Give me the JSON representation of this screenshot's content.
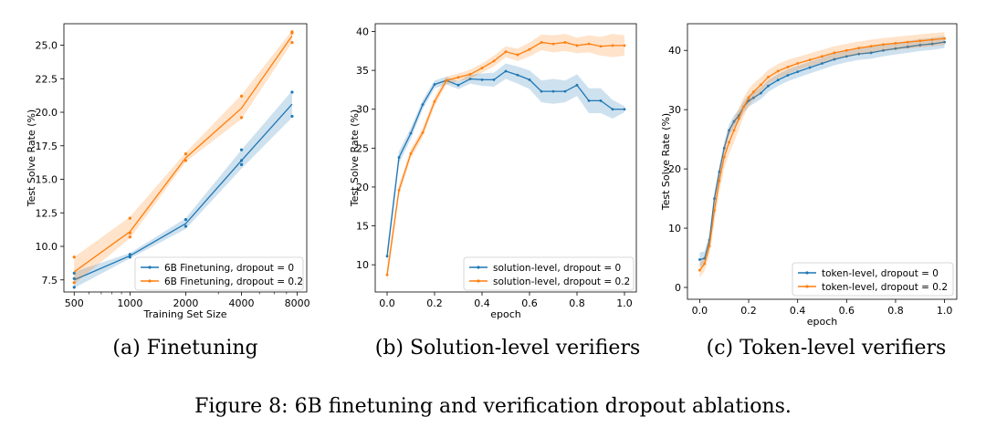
{
  "caption": "Figure 8: 6B finetuning and verification dropout ablations.",
  "colors": {
    "blue": "#1f77b4",
    "orange": "#ff7f0e"
  },
  "chart_data": [
    {
      "type": "line",
      "subcaption": "(a) Finetuning",
      "xlabel": "Training Set Size",
      "ylabel": "Test Solve Rate (%)",
      "xscale": "log2",
      "xlim": [
        440,
        9000
      ],
      "ylim": [
        6.6,
        26.6
      ],
      "xticks": [
        500,
        1000,
        2000,
        4000,
        8000
      ],
      "xticklabels": [
        "500",
        "1000",
        "2000",
        "4000",
        "8000"
      ],
      "yticks": [
        7.5,
        10,
        12.5,
        15,
        17.5,
        20,
        22.5,
        25
      ],
      "yticklabels": [
        "7.5",
        "10.0",
        "12.5",
        "15.0",
        "17.5",
        "20.0",
        "22.5",
        "25.0"
      ],
      "legend": "lower-right",
      "series": [
        {
          "name": "6B Finetuning, dropout = 0",
          "color": "blue",
          "x": [
            500,
            1000,
            2000,
            4000,
            7500
          ],
          "y": [
            7.5,
            9.3,
            11.7,
            16.4,
            20.6
          ],
          "band": [
            [
              6.9,
              8.1
            ],
            [
              9.1,
              9.5
            ],
            [
              11.3,
              12.1
            ],
            [
              15.8,
              17.2
            ],
            [
              19.6,
              21.6
            ]
          ],
          "scatter": [
            [
              500,
              6.95
            ],
            [
              500,
              7.6
            ],
            [
              500,
              8.0
            ],
            [
              1000,
              9.2
            ],
            [
              1000,
              9.4
            ],
            [
              2000,
              11.5
            ],
            [
              2000,
              12.0
            ],
            [
              4000,
              16.1
            ],
            [
              4000,
              16.4
            ],
            [
              4000,
              17.2
            ],
            [
              7500,
              19.7
            ],
            [
              7500,
              21.5
            ]
          ]
        },
        {
          "name": "6B Finetuning, dropout = 0.2",
          "color": "orange",
          "x": [
            500,
            1000,
            2000,
            4000,
            7500
          ],
          "y": [
            8.1,
            11.1,
            16.6,
            20.3,
            25.7
          ],
          "band": [
            [
              7.2,
              9.2
            ],
            [
              10.6,
              12.2
            ],
            [
              16.3,
              17.0
            ],
            [
              19.5,
              21.3
            ],
            [
              25.2,
              26.1
            ]
          ],
          "scatter": [
            [
              500,
              9.2
            ],
            [
              500,
              7.3
            ],
            [
              1000,
              10.7
            ],
            [
              1000,
              11.0
            ],
            [
              1000,
              12.1
            ],
            [
              2000,
              16.4
            ],
            [
              2000,
              16.9
            ],
            [
              4000,
              19.6
            ],
            [
              4000,
              21.2
            ],
            [
              7500,
              25.2
            ],
            [
              7500,
              25.9
            ],
            [
              7500,
              26.0
            ]
          ]
        }
      ]
    },
    {
      "type": "line",
      "subcaption": "(b) Solution-level verifiers",
      "xlabel": "epoch",
      "ylabel": "Test Solve Rate (%)",
      "xlim": [
        -0.05,
        1.05
      ],
      "ylim": [
        6.5,
        41.0
      ],
      "xticks": [
        0,
        0.2,
        0.4,
        0.6,
        0.8,
        1.0
      ],
      "xticklabels": [
        "0.0",
        "0.2",
        "0.4",
        "0.6",
        "0.8",
        "1.0"
      ],
      "yticks": [
        10,
        15,
        20,
        25,
        30,
        35,
        40
      ],
      "yticklabels": [
        "10",
        "15",
        "20",
        "25",
        "30",
        "35",
        "40"
      ],
      "legend": "lower-right",
      "series": [
        {
          "name": "solution-level, dropout = 0",
          "color": "blue",
          "x": [
            0.0,
            0.05,
            0.1,
            0.15,
            0.2,
            0.25,
            0.3,
            0.35,
            0.4,
            0.45,
            0.5,
            0.55,
            0.6,
            0.65,
            0.7,
            0.75,
            0.8,
            0.85,
            0.9,
            0.95,
            1.0
          ],
          "y": [
            11.1,
            23.8,
            26.9,
            30.6,
            33.2,
            33.7,
            33.1,
            33.9,
            33.8,
            33.8,
            34.9,
            34.4,
            33.8,
            32.3,
            32.3,
            32.3,
            33.1,
            31.1,
            31.1,
            30.0,
            30.0
          ],
          "spread": [
            1.0,
            0.8,
            0.7,
            0.6,
            0.5,
            0.5,
            0.5,
            0.6,
            0.8,
            0.9,
            1.0,
            1.1,
            1.2,
            1.4,
            1.6,
            1.4,
            1.4,
            1.6,
            1.6,
            1.2,
            0.4
          ]
        },
        {
          "name": "solution-level, dropout = 0.2",
          "color": "orange",
          "x": [
            0.0,
            0.05,
            0.1,
            0.15,
            0.2,
            0.25,
            0.3,
            0.35,
            0.4,
            0.45,
            0.5,
            0.55,
            0.6,
            0.65,
            0.7,
            0.75,
            0.8,
            0.85,
            0.9,
            0.95,
            1.0
          ],
          "y": [
            8.7,
            19.6,
            24.3,
            27.0,
            31.0,
            33.7,
            34.1,
            34.5,
            35.3,
            36.2,
            37.4,
            37.0,
            37.7,
            38.6,
            38.4,
            38.6,
            38.2,
            38.4,
            38.1,
            38.2,
            38.2
          ],
          "spread": [
            1.0,
            0.7,
            0.6,
            0.6,
            0.6,
            0.5,
            0.5,
            0.6,
            0.6,
            0.7,
            0.7,
            0.8,
            0.9,
            1.0,
            1.1,
            1.1,
            1.0,
            1.1,
            1.2,
            1.5,
            1.3
          ]
        }
      ]
    },
    {
      "type": "line",
      "subcaption": "(c) Token-level verifiers",
      "xlabel": "epoch",
      "ylabel": "Test Solve Rate (%)",
      "xlim": [
        -0.05,
        1.05
      ],
      "ylim": [
        -2.0,
        44.5
      ],
      "xticks": [
        0,
        0.2,
        0.4,
        0.6,
        0.8,
        1.0
      ],
      "xticklabels": [
        "0.0",
        "0.2",
        "0.4",
        "0.6",
        "0.8",
        "1.0"
      ],
      "yticks": [
        0,
        10,
        20,
        30,
        40
      ],
      "yticklabels": [
        "0",
        "10",
        "20",
        "30",
        "40"
      ],
      "legend": "lower-right",
      "series": [
        {
          "name": "token-level, dropout = 0",
          "color": "blue",
          "x": [
            0.0,
            0.02,
            0.04,
            0.06,
            0.08,
            0.1,
            0.12,
            0.14,
            0.16,
            0.18,
            0.2,
            0.22,
            0.25,
            0.28,
            0.32,
            0.36,
            0.4,
            0.45,
            0.5,
            0.55,
            0.6,
            0.65,
            0.7,
            0.75,
            0.8,
            0.85,
            0.9,
            0.95,
            1.0
          ],
          "y": [
            4.7,
            4.9,
            8.0,
            15.0,
            19.5,
            23.5,
            26.5,
            28.0,
            29.0,
            30.5,
            31.5,
            32.0,
            32.8,
            34.0,
            35.0,
            35.8,
            36.4,
            37.1,
            37.8,
            38.5,
            39.0,
            39.4,
            39.6,
            40.0,
            40.3,
            40.6,
            40.9,
            41.1,
            41.4
          ],
          "spread": [
            1.2,
            1.2,
            1.0,
            1.0,
            1.0,
            1.0,
            1.0,
            1.0,
            1.0,
            1.0,
            1.0,
            1.0,
            1.0,
            1.0,
            1.0,
            1.0,
            1.0,
            1.0,
            1.0,
            1.0,
            1.0,
            1.0,
            1.0,
            1.0,
            1.0,
            1.0,
            1.0,
            1.0,
            1.0
          ]
        },
        {
          "name": "token-level, dropout = 0.2",
          "color": "orange",
          "x": [
            0.0,
            0.02,
            0.04,
            0.06,
            0.08,
            0.1,
            0.12,
            0.14,
            0.16,
            0.18,
            0.2,
            0.22,
            0.25,
            0.28,
            0.32,
            0.36,
            0.4,
            0.45,
            0.5,
            0.55,
            0.6,
            0.65,
            0.7,
            0.75,
            0.8,
            0.85,
            0.9,
            0.95,
            1.0
          ],
          "y": [
            2.9,
            4.0,
            7.0,
            13.0,
            18.0,
            22.0,
            24.5,
            26.5,
            28.5,
            30.5,
            32.0,
            33.0,
            34.2,
            35.5,
            36.5,
            37.2,
            37.8,
            38.4,
            39.0,
            39.6,
            40.0,
            40.4,
            40.7,
            41.0,
            41.2,
            41.4,
            41.6,
            41.8,
            42.0
          ],
          "spread": [
            1.2,
            1.2,
            1.5,
            2.0,
            2.0,
            2.0,
            2.0,
            2.0,
            1.8,
            1.6,
            1.5,
            1.4,
            1.3,
            1.2,
            1.2,
            1.2,
            1.1,
            1.1,
            1.1,
            1.1,
            1.1,
            1.1,
            1.1,
            1.1,
            1.1,
            1.1,
            1.1,
            1.1,
            1.1
          ]
        }
      ]
    }
  ]
}
